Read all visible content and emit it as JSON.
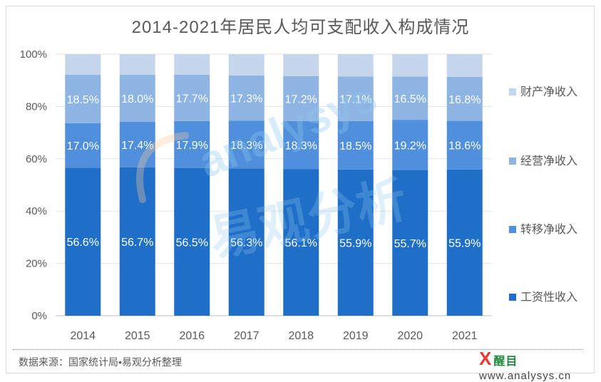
{
  "chart_data": {
    "type": "bar",
    "stacked": true,
    "title": "2014-2021年居民人均可支配收入构成情况",
    "categories": [
      "2014",
      "2015",
      "2016",
      "2017",
      "2018",
      "2019",
      "2020",
      "2021"
    ],
    "ylim": [
      0,
      100
    ],
    "yticks": [
      "0%",
      "20%",
      "40%",
      "60%",
      "80%",
      "100%"
    ],
    "legend_position": "right",
    "grid": true,
    "series": [
      {
        "name": "工资性收入",
        "color": "#1f6fc9",
        "values": [
          56.6,
          56.7,
          56.5,
          56.3,
          56.1,
          55.9,
          55.7,
          55.9
        ],
        "labels": [
          "56.6%",
          "56.7%",
          "56.5%",
          "56.3%",
          "56.1%",
          "55.9%",
          "55.7%",
          "55.9%"
        ]
      },
      {
        "name": "转移净收入",
        "color": "#4f8fdc",
        "values": [
          17.0,
          17.4,
          17.9,
          18.3,
          18.3,
          18.5,
          19.2,
          18.6
        ],
        "labels": [
          "17.0%",
          "17.4%",
          "17.9%",
          "18.3%",
          "18.3%",
          "18.5%",
          "19.2%",
          "18.6%"
        ]
      },
      {
        "name": "经营净收入",
        "color": "#8db4e3",
        "values": [
          18.5,
          18.0,
          17.7,
          17.3,
          17.2,
          17.1,
          16.5,
          16.8
        ],
        "labels": [
          "18.5%",
          "18.0%",
          "17.7%",
          "17.3%",
          "17.2%",
          "17.1%",
          "16.5%",
          "16.8%"
        ]
      },
      {
        "name": "财产净收入",
        "color": "#c5d6ec",
        "values": [
          7.9,
          7.9,
          7.9,
          8.1,
          8.4,
          8.5,
          8.6,
          8.7
        ]
      }
    ]
  },
  "footer": {
    "source": "数据来源：国家统计局•易观分析整理",
    "brand_mark": "X",
    "brand_name": "醒目",
    "brand_url": "www.analysys.cn"
  },
  "watermark": {
    "text": "analysys",
    "text2": "易观分析"
  }
}
